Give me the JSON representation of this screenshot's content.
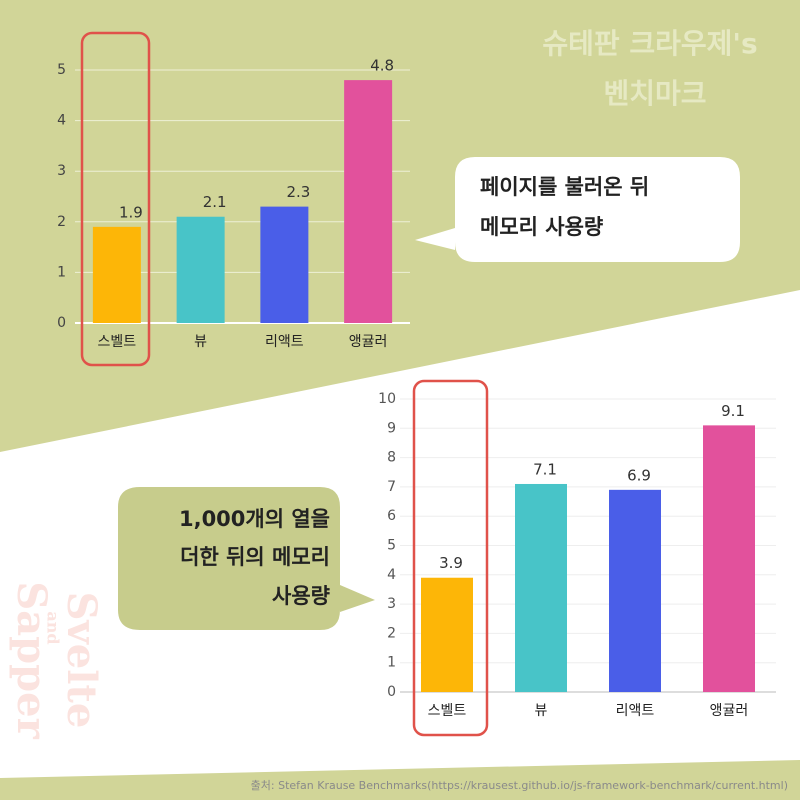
{
  "title_lines": [
    "슈테판 크라우제's",
    "벤치마크"
  ],
  "watermark_lines": [
    "Svelte",
    "and",
    "Sapper"
  ],
  "callouts": [
    [
      "페이지를 불러온 뒤",
      "메모리 사용량"
    ],
    [
      "1,000개의 열을",
      "더한 뒤의 메모리",
      "사용량"
    ]
  ],
  "source": "출처: Stefan Krause Benchmarks(https://krausest.github.io/js-framework-benchmark/current.html)",
  "chart_data": [
    {
      "type": "bar",
      "categories": [
        "스벨트",
        "뷰",
        "리액트",
        "앵귤러"
      ],
      "values": [
        1.9,
        2.1,
        2.3,
        4.8
      ],
      "colors": [
        "#fdb607",
        "#48c4c8",
        "#4a5ee8",
        "#e2519c"
      ],
      "ylim": [
        0,
        5
      ],
      "yticks": [
        0,
        1,
        2,
        3,
        4,
        5
      ],
      "grid": true
    },
    {
      "type": "bar",
      "categories": [
        "스벨트",
        "뷰",
        "리액트",
        "앵귤러"
      ],
      "values": [
        3.9,
        7.1,
        6.9,
        9.1
      ],
      "colors": [
        "#fdb607",
        "#48c4c8",
        "#4a5ee8",
        "#e2519c"
      ],
      "ylim": [
        0,
        10
      ],
      "yticks": [
        0,
        1,
        2,
        3,
        4,
        5,
        6,
        7,
        8,
        9,
        10
      ],
      "grid": true
    }
  ]
}
